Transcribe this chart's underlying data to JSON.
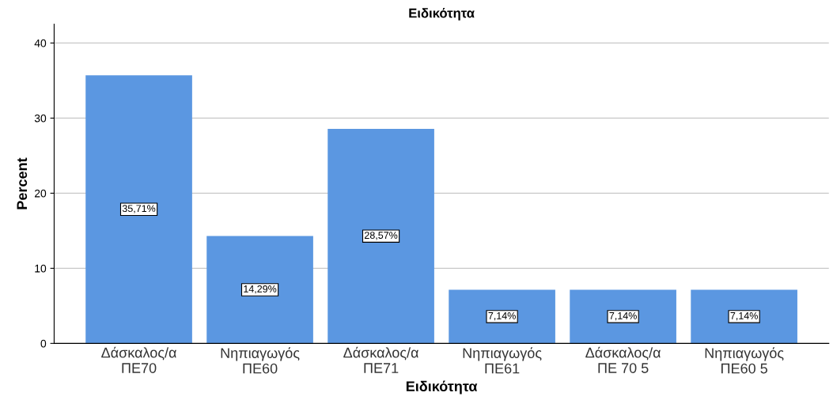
{
  "chart_data": {
    "type": "bar",
    "title": "Ειδικότητα",
    "xlabel": "Ειδικότητα",
    "ylabel": "Percent",
    "categories": [
      "Δάσκαλος/α\nΠΕ70",
      "Νηπιαγωγός\nΠΕ60",
      "Δάσκαλος/α\nΠΕ71",
      "Νηπιαγωγός\nΠΕ61",
      "Δάσκαλος/α\nΠΕ 70 5",
      "Νηπιαγωγός\nΠΕ60 5"
    ],
    "values": [
      35.71,
      14.29,
      28.57,
      7.14,
      7.14,
      7.14
    ],
    "value_labels": [
      "35,71%",
      "14,29%",
      "28,57%",
      "7,14%",
      "7,14%",
      "7,14%"
    ],
    "color": "#5b97e1",
    "ylim": [
      0,
      42.5
    ],
    "yticks": [
      0,
      10,
      20,
      30,
      40
    ],
    "grid": "y",
    "legend": false
  }
}
